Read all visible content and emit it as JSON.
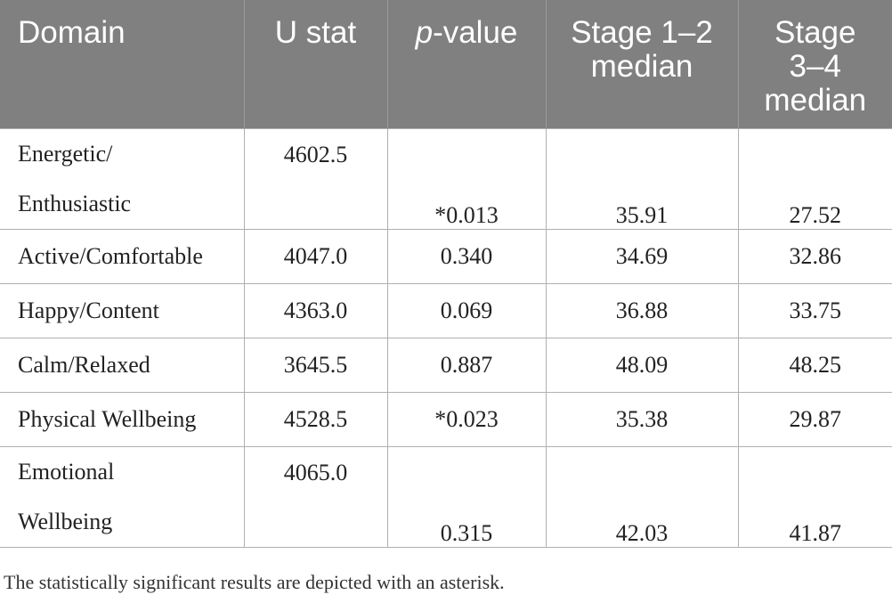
{
  "table": {
    "headers": {
      "domain": "Domain",
      "ustat": "U stat",
      "pvalue_italic": "p",
      "pvalue_rest": "-value",
      "stage12_line1": "Stage 1–2",
      "stage12_line2": "median",
      "stage34_line1": "Stage",
      "stage34_line2": "3–4",
      "stage34_line3": "median"
    },
    "rows": [
      {
        "domain_line1": "Energetic/",
        "domain_line2": "Enthusiastic",
        "ustat": "4602.5",
        "pvalue": "*0.013",
        "stage12": "35.91",
        "stage34": "27.52"
      },
      {
        "domain": "Active/Comfortable",
        "ustat": "4047.0",
        "pvalue": "0.340",
        "stage12": "34.69",
        "stage34": "32.86"
      },
      {
        "domain": "Happy/Content",
        "ustat": "4363.0",
        "pvalue": "0.069",
        "stage12": "36.88",
        "stage34": "33.75"
      },
      {
        "domain": "Calm/Relaxed",
        "ustat": "3645.5",
        "pvalue": "0.887",
        "stage12": "48.09",
        "stage34": "48.25"
      },
      {
        "domain": "Physical Wellbeing",
        "ustat": "4528.5",
        "pvalue": "*0.023",
        "stage12": "35.38",
        "stage34": "29.87"
      },
      {
        "domain_line1": "Emotional",
        "domain_line2": "Wellbeing",
        "ustat": "4065.0",
        "pvalue": "0.315",
        "stage12": "42.03",
        "stage34": "41.87"
      }
    ]
  },
  "footnote": "The statistically significant results are depicted with an asterisk.",
  "colors": {
    "header_bg": "#808080",
    "header_text": "#ffffff",
    "border": "#b0b0b0"
  }
}
